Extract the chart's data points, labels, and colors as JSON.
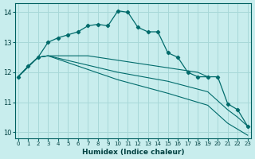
{
  "xlabel": "Humidex (Indice chaleur)",
  "background_color": "#c8eded",
  "grid_color": "#a8d8d8",
  "line_color": "#006b6b",
  "ylim": [
    9.8,
    14.3
  ],
  "xlim": [
    -0.3,
    23.3
  ],
  "yticks": [
    10,
    11,
    12,
    13,
    14
  ],
  "xticks": [
    0,
    1,
    2,
    3,
    4,
    5,
    6,
    7,
    8,
    9,
    10,
    11,
    12,
    13,
    14,
    15,
    16,
    17,
    18,
    19,
    20,
    21,
    22,
    23
  ],
  "curve_main_x": [
    0,
    1,
    2,
    3,
    4,
    5,
    6,
    7,
    8,
    9,
    10,
    11,
    12,
    13,
    14,
    15,
    16,
    17,
    18,
    19,
    20,
    21,
    22,
    23
  ],
  "curve_main_y": [
    11.85,
    12.2,
    12.5,
    13.0,
    13.15,
    13.25,
    13.35,
    13.55,
    13.6,
    13.55,
    14.05,
    14.0,
    13.5,
    13.35,
    13.35,
    12.65,
    12.5,
    12.0,
    11.85,
    11.85,
    11.85,
    10.95,
    10.75,
    10.2
  ],
  "curve_b_x": [
    0,
    1,
    2,
    3,
    4,
    5,
    6,
    7,
    8,
    9,
    10,
    11,
    12,
    13,
    14,
    15,
    16,
    17,
    18,
    19
  ],
  "curve_b_y": [
    11.85,
    12.2,
    12.5,
    12.55,
    12.55,
    12.55,
    12.55,
    12.55,
    12.5,
    12.45,
    12.4,
    12.35,
    12.3,
    12.25,
    12.2,
    12.15,
    12.1,
    12.05,
    12.0,
    11.85
  ],
  "curve_c_x": [
    0,
    2,
    3,
    10,
    15,
    19,
    21,
    22,
    23
  ],
  "curve_c_y": [
    11.85,
    12.5,
    12.55,
    12.0,
    11.7,
    11.35,
    10.75,
    10.5,
    10.2
  ],
  "curve_d_x": [
    0,
    2,
    3,
    10,
    15,
    19,
    21,
    22,
    23
  ],
  "curve_d_y": [
    11.85,
    12.5,
    12.55,
    11.75,
    11.3,
    10.9,
    10.3,
    10.1,
    9.9
  ]
}
